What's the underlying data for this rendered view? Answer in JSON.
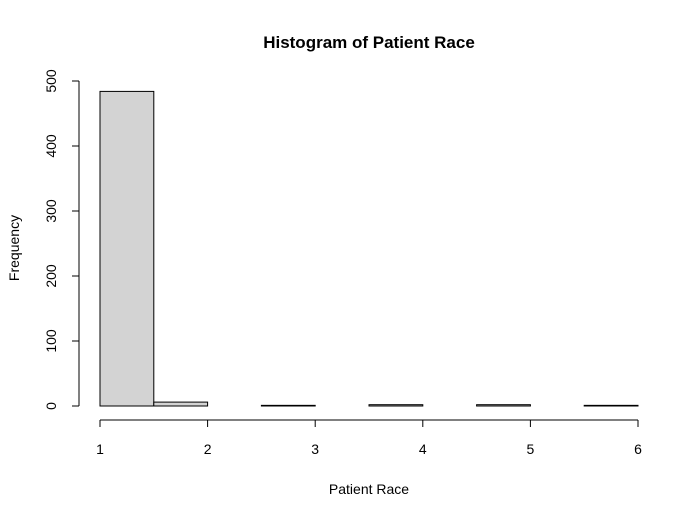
{
  "chart_data": {
    "type": "bar",
    "title": "Histogram of Patient Race",
    "xlabel": "Patient Race",
    "ylabel": "Frequency",
    "bins": [
      {
        "x0": 1.0,
        "x1": 1.5,
        "value": 484
      },
      {
        "x0": 1.5,
        "x1": 2.0,
        "value": 6
      },
      {
        "x0": 2.0,
        "x1": 2.5,
        "value": 0
      },
      {
        "x0": 2.5,
        "x1": 3.0,
        "value": 1
      },
      {
        "x0": 3.0,
        "x1": 3.5,
        "value": 0
      },
      {
        "x0": 3.5,
        "x1": 4.0,
        "value": 2
      },
      {
        "x0": 4.0,
        "x1": 4.5,
        "value": 0
      },
      {
        "x0": 4.5,
        "x1": 5.0,
        "value": 2
      },
      {
        "x0": 5.0,
        "x1": 5.5,
        "value": 0
      },
      {
        "x0": 5.5,
        "x1": 6.0,
        "value": 1
      }
    ],
    "xlim": [
      1,
      6
    ],
    "ylim": [
      0,
      500
    ],
    "xticks": [
      1,
      2,
      3,
      4,
      5,
      6
    ],
    "yticks": [
      0,
      100,
      200,
      300,
      400,
      500
    ],
    "bar_color": "#d3d3d3",
    "grid": false
  }
}
